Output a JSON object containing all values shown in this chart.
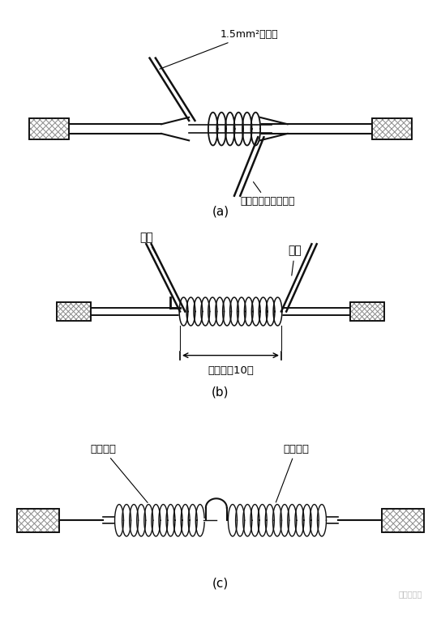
{
  "bg_color": "#ffffff",
  "label_a": "(a)",
  "label_b": "(b)",
  "label_c": "(c)",
  "annot_a1": "1.5mm²裸铜线",
  "annot_a2": "填入一根同直径芜线",
  "annot_b1": "折回",
  "annot_b2": "折回",
  "annot_b3": "导线直径10倍",
  "annot_c1": "继续缠绕",
  "annot_c2": "继续缠绕",
  "line_color": "#111111",
  "watermark": "电力合伙人",
  "fig_w": 5.44,
  "fig_h": 7.69,
  "dpi": 100
}
